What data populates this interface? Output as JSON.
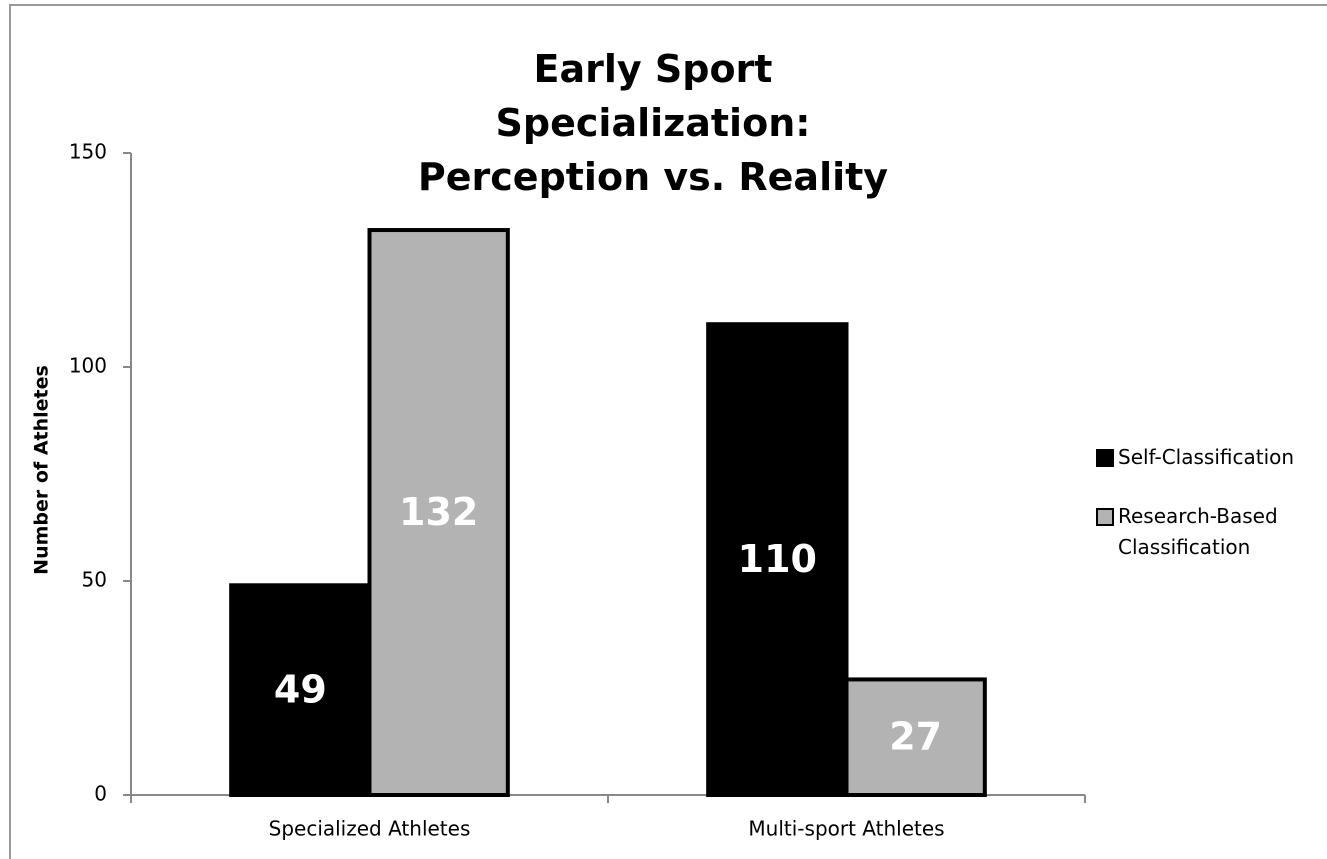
{
  "chart_data": {
    "type": "bar",
    "title": "Early Sport Specialization: Perception vs. Reality",
    "y_label": "Number of Athletes",
    "categories": [
      "Specialized Athletes",
      "Multi-sport Athletes"
    ],
    "series": [
      {
        "name": "Self-Classification",
        "color": "#000000",
        "values": [
          49,
          110
        ]
      },
      {
        "name": "Research-Based Classification",
        "color": "#b3b3b3",
        "values": [
          132,
          27
        ]
      }
    ],
    "ylim": [
      0,
      150
    ],
    "yticks": [
      0,
      50,
      100,
      150
    ],
    "grid": false,
    "legend": "right"
  }
}
